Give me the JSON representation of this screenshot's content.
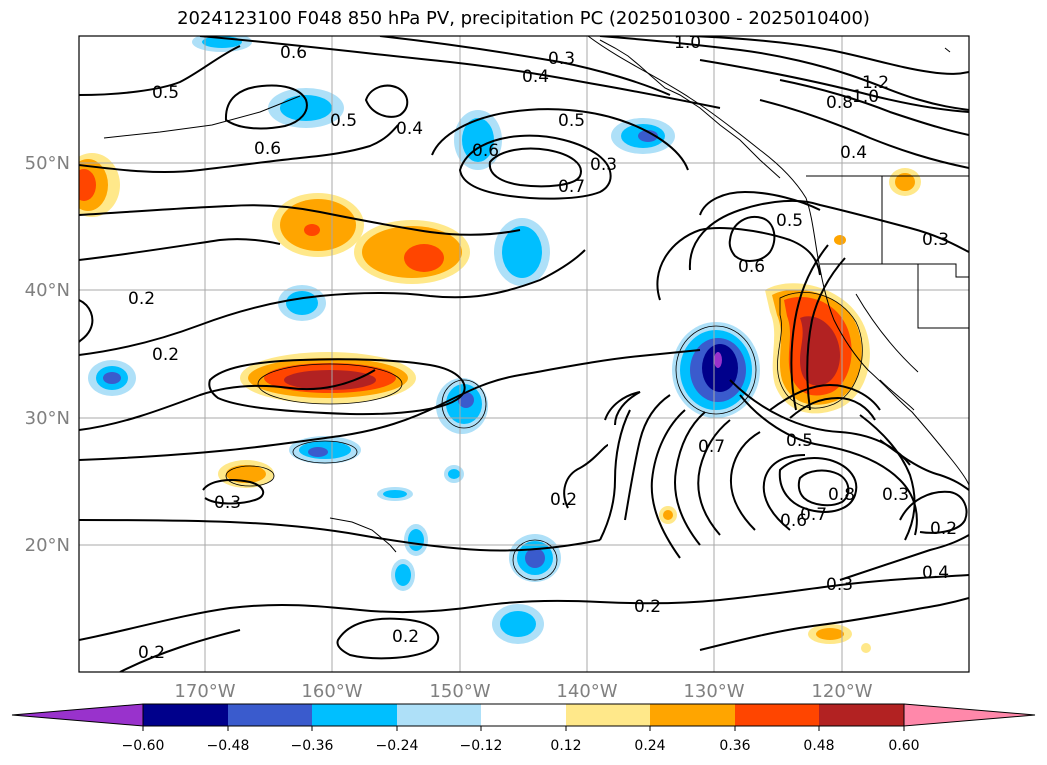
{
  "title": "2024123100 F048 850 hPa PV, precipitation PC (2025010300 - 2025010400)",
  "map": {
    "lon_labels": [
      "170°W",
      "160°W",
      "150°W",
      "140°W",
      "130°W",
      "120°W"
    ],
    "lat_labels": [
      "50°N",
      "40°N",
      "30°N",
      "20°N"
    ],
    "contour_labels": [
      "0.6",
      "0.5",
      "0.5",
      "0.6",
      "0.4",
      "0.6",
      "0.3",
      "0.4",
      "0.5",
      "0.7",
      "1.0",
      "1.2",
      "1.0",
      "0.8",
      "0.4",
      "0.5",
      "0.6",
      "0.3",
      "0.2",
      "0.2",
      "0.3",
      "0.2",
      "0.2",
      "0.7",
      "0.5",
      "0.8",
      "0.7",
      "0.6",
      "0.3",
      "0.3",
      "0.2",
      "0.4",
      "0.2",
      "0.2",
      "0.3"
    ]
  },
  "colorbar": {
    "ticks": [
      "−0.60",
      "−0.48",
      "−0.36",
      "−0.24",
      "−0.12",
      "0.12",
      "0.24",
      "0.36",
      "0.48",
      "0.60"
    ],
    "colors": [
      "#9932cc",
      "#00008b",
      "#3a5bcd",
      "#00bfff",
      "#aee0f8",
      "#ffffff",
      "#ffe88a",
      "#ffa500",
      "#ff4500",
      "#b22222",
      "#ff88aa"
    ]
  }
}
